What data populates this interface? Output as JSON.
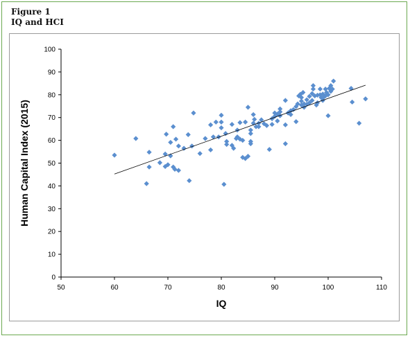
{
  "figure": {
    "label": "Figure 1",
    "title": "IQ and HCI"
  },
  "colors": {
    "frame_border": "#6aa84f",
    "marker": "#5b8fcf",
    "trendline": "#000000",
    "axis": "#000000"
  },
  "chart_data": {
    "type": "scatter",
    "title": "",
    "xlabel": "IQ",
    "ylabel": "Human Capital Index (2015)",
    "xlim": [
      50,
      110
    ],
    "ylim": [
      0,
      100
    ],
    "xticks": [
      50,
      60,
      70,
      80,
      90,
      100,
      110
    ],
    "yticks": [
      0,
      10,
      20,
      30,
      40,
      50,
      60,
      70,
      80,
      90,
      100
    ],
    "grid": false,
    "legend": "none",
    "marker": "diamond",
    "trendline": {
      "x": [
        60,
        107
      ],
      "y": [
        45.2,
        84.2
      ]
    },
    "points": [
      [
        60,
        53.5
      ],
      [
        64,
        60.8
      ],
      [
        66,
        41
      ],
      [
        66.5,
        54.8
      ],
      [
        66.5,
        48.3
      ],
      [
        68.5,
        50.2
      ],
      [
        69.5,
        54
      ],
      [
        69.5,
        48.5
      ],
      [
        69.7,
        62.7
      ],
      [
        70,
        49.3
      ],
      [
        70.5,
        59.1
      ],
      [
        70.5,
        53.2
      ],
      [
        71,
        66
      ],
      [
        71,
        48.3
      ],
      [
        71.3,
        47.3
      ],
      [
        71.5,
        60.5
      ],
      [
        72,
        46.8
      ],
      [
        72,
        57.5
      ],
      [
        73,
        56.5
      ],
      [
        73.8,
        62.5
      ],
      [
        74,
        42.3
      ],
      [
        74.5,
        57.5
      ],
      [
        74.8,
        72
      ],
      [
        76,
        54.2
      ],
      [
        77,
        60.8
      ],
      [
        78,
        66.8
      ],
      [
        78,
        55.8
      ],
      [
        78.5,
        61.5
      ],
      [
        79,
        68
      ],
      [
        79.5,
        61.5
      ],
      [
        80,
        71
      ],
      [
        80,
        68
      ],
      [
        80,
        65.5
      ],
      [
        80.5,
        40.7
      ],
      [
        80.8,
        63
      ],
      [
        81,
        59.5
      ],
      [
        81,
        58.2
      ],
      [
        82,
        67
      ],
      [
        82,
        57.8
      ],
      [
        82.3,
        56.5
      ],
      [
        82.8,
        60.8
      ],
      [
        83,
        64.5
      ],
      [
        83,
        61.5
      ],
      [
        83.5,
        60.5
      ],
      [
        83.5,
        67.8
      ],
      [
        84,
        52.5
      ],
      [
        84,
        60
      ],
      [
        84.5,
        52
      ],
      [
        84.5,
        68
      ],
      [
        85,
        74.5
      ],
      [
        85,
        53
      ],
      [
        85.5,
        63
      ],
      [
        85.5,
        58.5
      ],
      [
        85.5,
        59.5
      ],
      [
        85.5,
        64.5
      ],
      [
        86,
        67.5
      ],
      [
        86,
        71.3
      ],
      [
        86.2,
        69.2
      ],
      [
        86.5,
        66
      ],
      [
        87,
        66
      ],
      [
        87,
        67.5
      ],
      [
        87.5,
        69
      ],
      [
        88,
        67.3
      ],
      [
        88.5,
        66.5
      ],
      [
        89,
        56
      ],
      [
        89.5,
        67
      ],
      [
        89.5,
        69.5
      ],
      [
        90,
        72
      ],
      [
        90,
        70.5
      ],
      [
        90.5,
        68.5
      ],
      [
        90.5,
        71.5
      ],
      [
        91,
        70.8
      ],
      [
        91,
        72.5
      ],
      [
        91,
        73.8
      ],
      [
        92,
        77.5
      ],
      [
        92,
        58.5
      ],
      [
        92,
        66.8
      ],
      [
        92.5,
        72
      ],
      [
        93,
        73
      ],
      [
        93,
        71.3
      ],
      [
        93.5,
        73.5
      ],
      [
        94,
        74.8
      ],
      [
        94,
        68.2
      ],
      [
        94.3,
        76
      ],
      [
        94.5,
        79.5
      ],
      [
        94.8,
        80.2
      ],
      [
        95,
        75.5
      ],
      [
        95,
        77.2
      ],
      [
        95,
        78.8
      ],
      [
        95.3,
        81
      ],
      [
        95.5,
        74.5
      ],
      [
        95.5,
        76
      ],
      [
        96,
        77.8
      ],
      [
        96,
        75.8
      ],
      [
        96.5,
        76.5
      ],
      [
        96.5,
        79.3
      ],
      [
        97,
        77.5
      ],
      [
        97,
        80.5
      ],
      [
        97.2,
        82.5
      ],
      [
        97.2,
        84
      ],
      [
        97.5,
        79.5
      ],
      [
        97.8,
        75.5
      ],
      [
        98,
        76.5
      ],
      [
        98,
        79.8
      ],
      [
        98.5,
        80
      ],
      [
        98.5,
        82.5
      ],
      [
        98.7,
        78.8
      ],
      [
        99,
        77.5
      ],
      [
        99,
        80.3
      ],
      [
        99.2,
        79
      ],
      [
        99.5,
        79.5
      ],
      [
        99.5,
        82.5
      ],
      [
        99.7,
        81
      ],
      [
        100,
        70.8
      ],
      [
        100,
        80
      ],
      [
        100.2,
        82.8
      ],
      [
        100.5,
        84
      ],
      [
        100.5,
        81.5
      ],
      [
        100.8,
        82.5
      ],
      [
        101,
        86
      ],
      [
        104.3,
        82.8
      ],
      [
        104.5,
        76.8
      ],
      [
        105.8,
        67.5
      ],
      [
        107,
        78.2
      ]
    ]
  }
}
